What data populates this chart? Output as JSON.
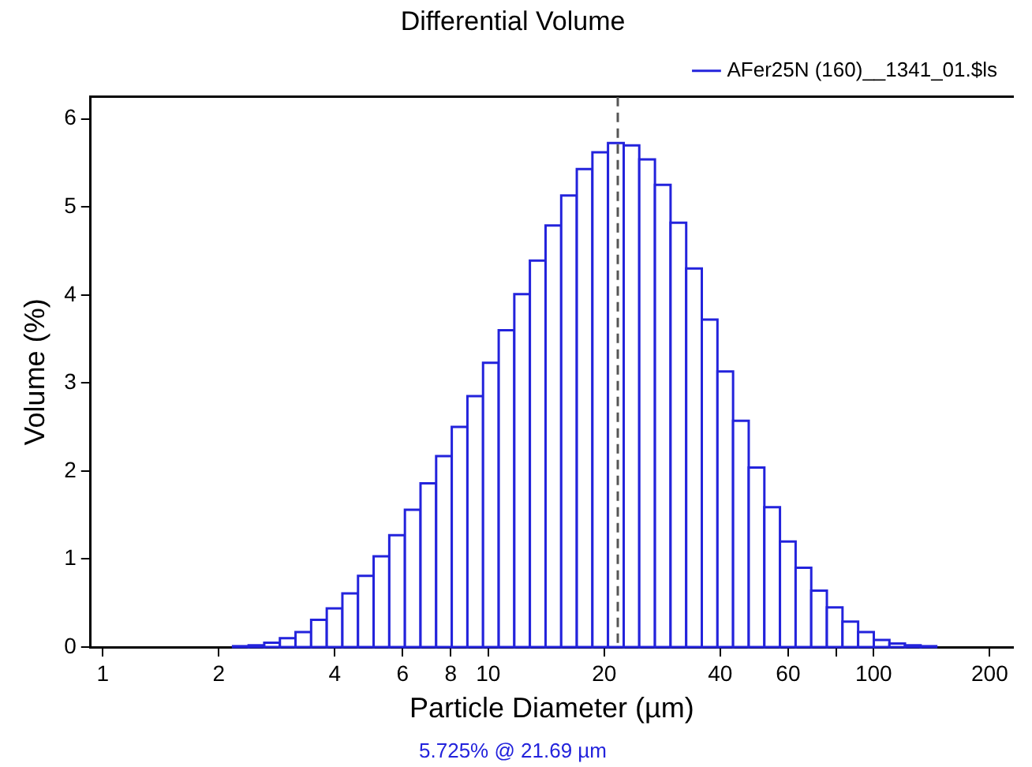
{
  "chart_data": {
    "type": "histogram",
    "title": "Differential Volume",
    "xlabel": "Particle Diameter (µm)",
    "ylabel": "Volume (%)",
    "bins": [
      2.178,
      2.391,
      2.625,
      2.882,
      3.164,
      3.473,
      3.813,
      4.186,
      4.596,
      5.045,
      5.539,
      6.081,
      6.676,
      7.329,
      8.046,
      8.834,
      9.699,
      10.65,
      11.69,
      12.83,
      14.09,
      15.47,
      16.98,
      18.64,
      20.46,
      22.47,
      24.66,
      27.08,
      29.73,
      32.64,
      35.83,
      39.34,
      43.19,
      47.42,
      52.06,
      57.15,
      62.75,
      68.89,
      75.63,
      83.03,
      91.16,
      100.1,
      109.9,
      120.6,
      132.4,
      145.4
    ],
    "series": [
      {
        "name": "AFer25N (160)__1341_01.$ls",
        "color": "#2323dc",
        "values": [
          0.01,
          0.02,
          0.05,
          0.1,
          0.17,
          0.31,
          0.44,
          0.61,
          0.81,
          1.03,
          1.27,
          1.56,
          1.86,
          2.17,
          2.5,
          2.85,
          3.23,
          3.6,
          4.01,
          4.39,
          4.79,
          5.13,
          5.43,
          5.62,
          5.725,
          5.7,
          5.54,
          5.25,
          4.82,
          4.3,
          3.72,
          3.13,
          2.57,
          2.04,
          1.59,
          1.2,
          0.9,
          0.64,
          0.45,
          0.29,
          0.17,
          0.08,
          0.04,
          0.02,
          0.01
        ]
      }
    ],
    "log": "x",
    "xlim": [
      0.93,
      230
    ],
    "xticks": [
      1,
      2,
      4,
      6,
      8,
      10,
      20,
      40,
      60,
      {
        "value": 80,
        "label": null
      },
      100,
      200
    ],
    "ylim": [
      0,
      6.25
    ],
    "yticks": [
      0,
      1,
      2,
      3,
      4,
      5,
      6
    ],
    "grid": false,
    "legend": "top right",
    "ref_lines": [
      {
        "axis": "x",
        "value": 21.69,
        "line_style": "dashed",
        "color": "#555555"
      }
    ],
    "annotations": [
      "5.725% @ 21.69 µm"
    ]
  }
}
